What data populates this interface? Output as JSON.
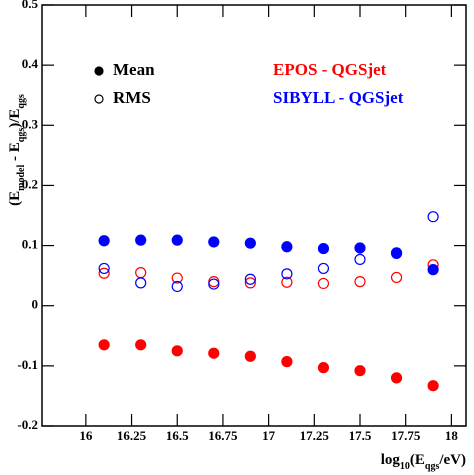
{
  "chart_data": {
    "type": "scatter",
    "x": [
      16.1,
      16.3,
      16.5,
      16.7,
      16.9,
      17.1,
      17.3,
      17.5,
      17.7,
      17.9
    ],
    "series": [
      {
        "name": "EPOS - QGSjet",
        "color": "#ff0000",
        "mean": [
          -0.065,
          -0.065,
          -0.075,
          -0.079,
          -0.084,
          -0.093,
          -0.103,
          -0.108,
          -0.12,
          -0.133
        ],
        "rms": [
          0.054,
          0.055,
          0.046,
          0.04,
          0.038,
          0.039,
          0.037,
          0.04,
          0.047,
          0.068
        ]
      },
      {
        "name": "SIBYLL - QGSjet",
        "color": "#0000ff",
        "mean": [
          0.108,
          0.109,
          0.109,
          0.106,
          0.104,
          0.098,
          0.095,
          0.096,
          0.088,
          0.06
        ],
        "rms": [
          0.062,
          0.038,
          0.032,
          0.036,
          0.044,
          0.053,
          0.062,
          0.077,
          0.087,
          0.148
        ]
      }
    ],
    "marker_labels": [
      "Mean",
      "RMS"
    ],
    "x_label": [
      "log",
      "10",
      "(E",
      "qgs",
      "/eV)"
    ],
    "y_label": [
      "(E",
      "model",
      " - E",
      "qgs",
      ")/E",
      "qgs"
    ],
    "xlim": [
      15.76,
      18.08
    ],
    "ylim": [
      -0.2,
      0.5
    ],
    "xticks": [
      16,
      16.25,
      16.5,
      16.75,
      17,
      17.25,
      17.5,
      17.75,
      18
    ],
    "yticks": [
      -0.2,
      -0.1,
      0,
      0.1,
      0.2,
      0.3,
      0.4,
      0.5
    ]
  }
}
